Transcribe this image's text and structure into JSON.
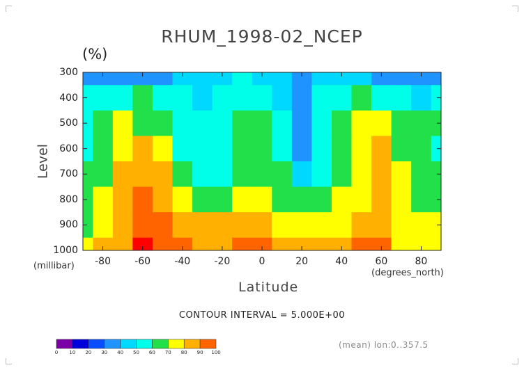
{
  "title": "RHUM_1998-02_NCEP",
  "unit_label": "(%)",
  "contour_interval": "CONTOUR INTERVAL = 5.000E+00",
  "footer_note": "(mean) lon:0..357.5",
  "colors": {
    "levels": [
      "#7a00a8",
      "#0000dd",
      "#0a4cff",
      "#1f93ff",
      "#00d8ff",
      "#00ffe8",
      "#22e04a",
      "#ffff00",
      "#ffb000",
      "#ff6400",
      "#ff0000"
    ]
  },
  "chart_data": {
    "type": "heatmap",
    "title": "RHUM_1998-02_NCEP",
    "xlabel": "Latitude",
    "x_unit": "(degrees_north)",
    "ylabel": "Level",
    "y_unit": "(millibar)",
    "xlim": [
      -90,
      90
    ],
    "ylim": [
      1000,
      300
    ],
    "x_ticks": [
      -80,
      -60,
      -40,
      -20,
      0,
      20,
      40,
      60,
      80
    ],
    "x_tick_labels": [
      "-80",
      "-60",
      "-40",
      "-20",
      "0",
      "20",
      "40",
      "60",
      "80"
    ],
    "y_ticks": [
      300,
      400,
      500,
      600,
      700,
      800,
      900,
      1000
    ],
    "y_tick_labels": [
      "300",
      "400",
      "500",
      "600",
      "700",
      "800",
      "900",
      "1000"
    ],
    "colorbar_ticks": [
      0,
      10,
      20,
      30,
      40,
      50,
      60,
      70,
      80,
      90,
      100
    ],
    "colorbar_tick_labels": [
      "0",
      "10",
      "20",
      "30",
      "40",
      "50",
      "60",
      "70",
      "80",
      "90",
      "100"
    ],
    "grid": false,
    "latitudes": [
      -90,
      -80,
      -70,
      -60,
      -50,
      -40,
      -30,
      -20,
      -10,
      0,
      10,
      20,
      30,
      40,
      50,
      60,
      70,
      80,
      90
    ],
    "levels": [
      300,
      400,
      500,
      600,
      700,
      800,
      900,
      1000
    ],
    "values": [
      [
        21,
        22,
        24,
        22,
        27,
        32,
        35,
        39,
        40,
        39,
        30,
        25,
        34,
        38,
        34,
        28,
        26,
        25,
        22
      ],
      [
        44,
        40,
        42,
        50,
        44,
        40,
        38,
        40,
        44,
        46,
        36,
        24,
        40,
        47,
        50,
        44,
        40,
        38,
        40
      ],
      [
        40,
        50,
        60,
        58,
        52,
        44,
        40,
        43,
        50,
        54,
        44,
        22,
        44,
        56,
        60,
        68,
        58,
        52,
        50
      ],
      [
        44,
        52,
        66,
        72,
        62,
        45,
        40,
        44,
        52,
        56,
        46,
        26,
        46,
        58,
        62,
        70,
        58,
        52,
        48
      ],
      [
        50,
        56,
        72,
        78,
        70,
        52,
        44,
        48,
        56,
        58,
        50,
        38,
        46,
        58,
        62,
        72,
        60,
        54,
        50
      ],
      [
        56,
        62,
        74,
        82,
        78,
        64,
        56,
        58,
        64,
        62,
        58,
        50,
        54,
        60,
        66,
        70,
        62,
        56,
        56
      ],
      [
        58,
        66,
        76,
        86,
        84,
        74,
        70,
        70,
        74,
        70,
        64,
        62,
        62,
        66,
        76,
        74,
        64,
        60,
        62
      ],
      [
        62,
        70,
        78,
        92,
        86,
        80,
        76,
        78,
        82,
        80,
        72,
        70,
        70,
        74,
        84,
        80,
        68,
        64,
        66
      ]
    ]
  }
}
